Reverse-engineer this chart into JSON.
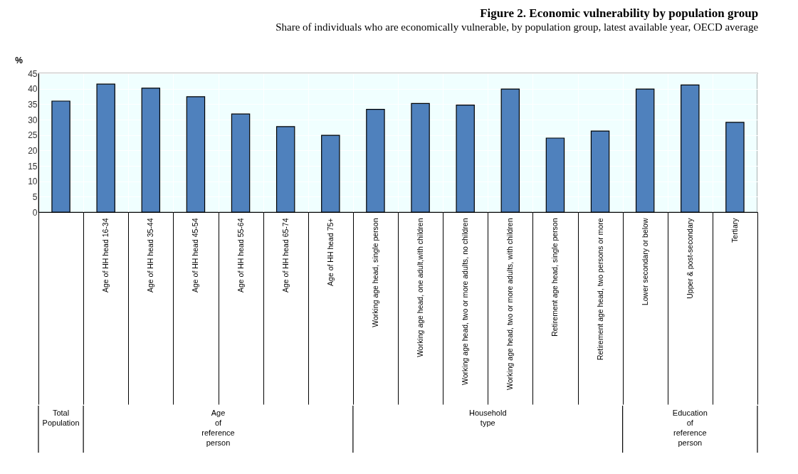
{
  "chart_data": {
    "type": "bar",
    "title": "Figure 2. Economic vulnerability by population group",
    "subtitle": "Share of individuals  who are economically  vulnerable, by population  group, latest available  year,  OECD average",
    "ylabel": "%",
    "categories": [
      null,
      "Age of HH head 16-34",
      "Age of HH head 35-44",
      "Age of HH head 45-54",
      "Age of HH head 55-64",
      "Age of HH head 65-74",
      "Age of HH head 75+",
      "Working age head, single person",
      "Working age head, one adult,with children",
      "Working age head, two or more adults, no children",
      "Working age head, two or more adults, with children",
      "Retirement age head, single person",
      "Retirement age head, two persons or more",
      "Lower secondary or below",
      "Upper & post-secondary",
      "Tertiary"
    ],
    "values": [
      36.0,
      41.5,
      40.2,
      37.4,
      31.8,
      27.7,
      24.9,
      33.3,
      35.2,
      34.7,
      39.9,
      24.0,
      26.3,
      39.9,
      41.2,
      29.1
    ],
    "color": "#4f81bd",
    "ylim": [
      0,
      45
    ],
    "yticks": [
      0,
      5,
      10,
      15,
      20,
      25,
      30,
      35,
      40,
      45
    ],
    "grid": true,
    "annotations": [
      "Total Population",
      "Age of reference person",
      "Household type",
      "Education of reference person"
    ]
  }
}
